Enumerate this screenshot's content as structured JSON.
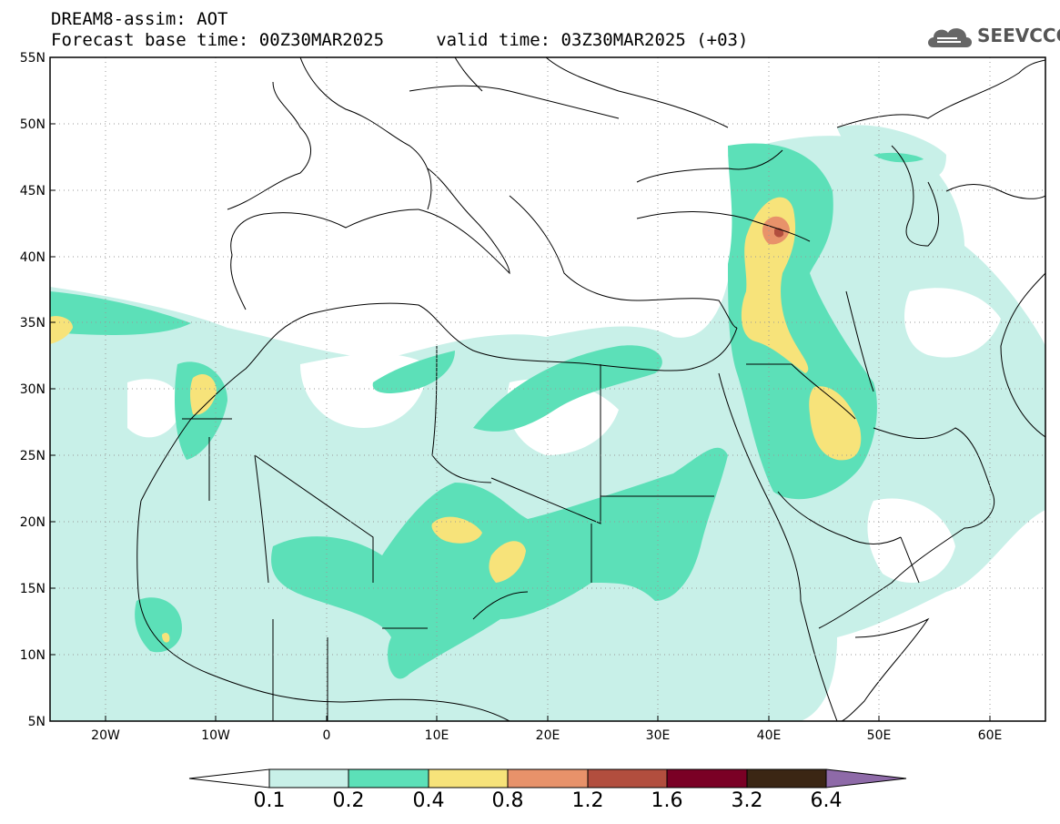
{
  "header": {
    "line1": "DREAM8-assim: AOT",
    "line2": "Forecast base time: 00Z30MAR2025     valid time: 03Z30MAR2025 (+03)"
  },
  "logo": {
    "text": "SEEVCCC",
    "icon": "cloud-icon"
  },
  "map": {
    "lat_labels": [
      "55N",
      "50N",
      "45N",
      "40N",
      "35N",
      "30N",
      "25N",
      "20N",
      "15N",
      "10N",
      "5N"
    ],
    "lon_labels": [
      "20W",
      "10W",
      "0",
      "10E",
      "20E",
      "30E",
      "40E",
      "50E",
      "60E"
    ],
    "lat_range": [
      5,
      55
    ],
    "lon_range": [
      -25,
      65
    ],
    "grid": "dotted"
  },
  "colorbar": {
    "levels": [
      "0.1",
      "0.2",
      "0.4",
      "0.8",
      "1.2",
      "1.6",
      "3.2",
      "6.4"
    ],
    "colors": [
      "#ffffff",
      "#c8f0e8",
      "#5ce0b8",
      "#f7e37a",
      "#e8926a",
      "#b24e3e",
      "#7a0025",
      "#3b2614",
      "#8e6aa8"
    ]
  }
}
